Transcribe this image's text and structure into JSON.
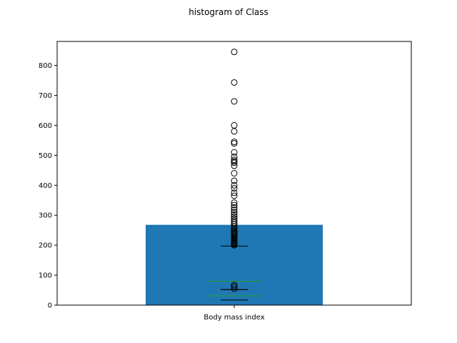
{
  "chart_data": {
    "type": "bar",
    "title": "histogram of Class",
    "categories": [
      "Body mass index"
    ],
    "series": [
      {
        "values": [
          268
        ],
        "color": "#1f77b4"
      }
    ],
    "ylim": [
      0,
      880
    ],
    "yticks": [
      0,
      100,
      200,
      300,
      400,
      500,
      600,
      700,
      800
    ],
    "grid": false,
    "boxplot_overlays": [
      {
        "whisker_low": 17,
        "whisker_high": 197,
        "outliers": [
          200,
          203,
          206,
          209,
          212,
          215,
          218,
          222,
          226,
          230,
          234,
          238,
          243,
          248,
          253,
          258,
          264,
          270,
          276,
          282,
          289,
          296,
          303,
          310,
          318,
          326,
          334,
          342,
          365,
          375,
          390,
          400,
          415,
          440,
          465,
          475,
          480,
          485,
          495,
          510,
          540,
          545,
          580,
          600,
          680,
          743,
          845
        ]
      },
      {
        "whisker_low": 52,
        "whisker_high": 52,
        "outliers": [
          55,
          62,
          67
        ]
      }
    ],
    "horizontal_lines": [
      {
        "value": 79,
        "color": "#2ca02c"
      },
      {
        "value": 31,
        "color": "#2ca02c"
      }
    ]
  }
}
